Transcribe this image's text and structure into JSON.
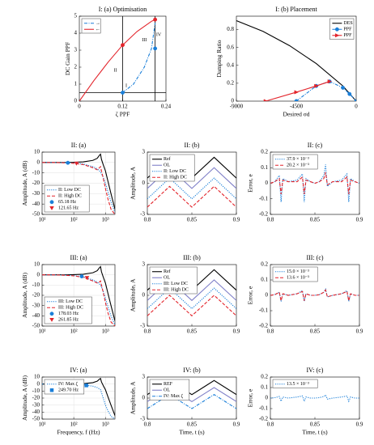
{
  "chart_data": [
    {
      "type": "line",
      "title": "I: (a) Optimisation",
      "xlabel": "ζ PPF",
      "ylabel": "DC Gain PPF",
      "xlim": [
        0,
        0.24
      ],
      "ylim": [
        0,
        5
      ],
      "xticks": [
        0,
        0.12,
        0.24
      ],
      "yticks": [
        0,
        1,
        2,
        3,
        4,
        5
      ],
      "legend": "upper left",
      "vlines": [
        0.12,
        0.21
      ],
      "hlines": [
        0.5
      ],
      "series": [
        {
          "name": "→",
          "color": "#1a7fd9",
          "dash": "dashdot",
          "x": [
            0.12,
            0.15,
            0.18,
            0.2,
            0.21
          ],
          "values": [
            0.5,
            1.0,
            2.0,
            3.1,
            4.6
          ]
        },
        {
          "name": "←",
          "color": "#e3242b",
          "dash": "solid",
          "x": [
            0,
            0.04,
            0.08,
            0.12,
            0.16,
            0.2,
            0.21
          ],
          "values": [
            0,
            1.2,
            2.3,
            3.3,
            4.1,
            4.7,
            4.8
          ]
        },
        {
          "color": "#1a7fd9",
          "marker": "o",
          "line": false,
          "x": [
            0.12,
            0.21
          ],
          "values": [
            0.5,
            3.1
          ]
        },
        {
          "color": "#e3242b",
          "marker": "o",
          "line": false,
          "x": [
            0.12,
            0.21
          ],
          "values": [
            3.3,
            4.8
          ]
        }
      ],
      "annotations": [
        {
          "text": "I",
          "x": 0.13,
          "y": 0.9
        },
        {
          "text": "II",
          "x": 0.1,
          "y": 1.8
        },
        {
          "text": "III",
          "x": 0.18,
          "y": 3.6
        },
        {
          "text": "IV",
          "x": 0.22,
          "y": 3.9
        }
      ]
    },
    {
      "type": "line",
      "title": "I: (b) Placement",
      "xlabel": "Desired σd",
      "ylabel": "Damping Ratio",
      "xlim": [
        -9000,
        0
      ],
      "ylim": [
        0,
        0.95
      ],
      "xticks": [
        -9000,
        -4500,
        0
      ],
      "yticks": [
        0,
        0.2,
        0.4,
        0.6,
        0.8
      ],
      "legend": "upper right",
      "series": [
        {
          "name": "DES",
          "color": "#000000",
          "dash": "solid",
          "x": [
            -9000,
            -7000,
            -5000,
            -3000,
            -1000,
            0
          ],
          "values": [
            0.9,
            0.78,
            0.62,
            0.42,
            0.17,
            0
          ]
        },
        {
          "name": "PPF",
          "color": "#1a7fd9",
          "dash": "dashdot",
          "marker": "o",
          "x": [
            -4500,
            -3000,
            -2000,
            -1000,
            -500,
            0
          ],
          "values": [
            0,
            0.17,
            0.22,
            0.15,
            0.08,
            0
          ]
        },
        {
          "name": "PPF",
          "color": "#e3242b",
          "dash": "solid",
          "marker": ">",
          "x": [
            -6800,
            -4500,
            -3000,
            -2000
          ],
          "values": [
            0,
            0.1,
            0.17,
            0.22
          ]
        }
      ]
    },
    {
      "type": "line",
      "title": "II: (a)",
      "ylabel": "Amplitude, A (dB)",
      "xscale": "log",
      "grid": true,
      "legend": "lower left",
      "xlim": [
        10,
        2000
      ],
      "ylim": [
        -50,
        10
      ],
      "xticks": [
        {
          "value": 10,
          "label": "10¹"
        },
        {
          "value": 100,
          "label": "10²"
        },
        {
          "value": 1000,
          "label": "10³"
        }
      ],
      "yticks": [
        -50,
        -40,
        -30,
        -20,
        -10,
        0,
        10
      ],
      "x": [
        10,
        20,
        50,
        100,
        200,
        400,
        550,
        650,
        700,
        750,
        850,
        1000,
        1200,
        1500,
        2000
      ],
      "series": [
        {
          "color": "#000000",
          "dash": "solid",
          "values": [
            0,
            0,
            0,
            0.2,
            0.6,
            2,
            4,
            7,
            8,
            3,
            -2,
            -8,
            -18,
            -30,
            -45
          ]
        },
        {
          "name": "II: Low DC",
          "color": "#1a7fd9",
          "dash": "dot",
          "values": [
            0,
            0,
            -0.2,
            -0.5,
            -1.5,
            -4,
            -6,
            -8,
            -9,
            -11,
            -14,
            -20,
            -28,
            -38,
            -48
          ]
        },
        {
          "name": "II: High DC",
          "color": "#e3242b",
          "dash": "dash",
          "values": [
            0,
            0,
            -0.3,
            -0.8,
            -2,
            -5,
            -7,
            -5,
            -4,
            -8,
            -15,
            -25,
            -35,
            -45,
            -50
          ]
        },
        {
          "name": "65.18 Hz",
          "color": "#1a7fd9",
          "marker": "o",
          "line": false,
          "x": [
            65.18
          ],
          "values": [
            -0.3
          ]
        },
        {
          "name": "121.65 Hz",
          "color": "#e3242b",
          "marker": "v",
          "line": false,
          "x": [
            121.65
          ],
          "values": [
            -1
          ]
        }
      ]
    },
    {
      "type": "line",
      "title": "II: (b)",
      "ylabel": "Amplitude, A",
      "legend": "upper left",
      "xlim": [
        0.8,
        0.9
      ],
      "ylim": [
        -3,
        3
      ],
      "xticks": [
        0.8,
        0.85,
        0.9
      ],
      "yticks": [
        -3,
        0,
        3
      ],
      "x": [
        0.8,
        0.825,
        0.85,
        0.875,
        0.9
      ],
      "series": [
        {
          "name": "Ref",
          "color": "#000000",
          "dash": "solid",
          "values": [
            0.5,
            2.5,
            0.5,
            2.5,
            0.5
          ]
        },
        {
          "name": "OL",
          "color": "#8080c8",
          "dash": "solid",
          "values": [
            -0.5,
            1.5,
            -0.5,
            1.5,
            -0.5
          ]
        },
        {
          "name": "II: Low DC",
          "color": "#1a7fd9",
          "dash": "dot",
          "values": [
            -1.5,
            0.5,
            -1.5,
            0.5,
            -1.5
          ]
        },
        {
          "name": "II: High DC",
          "color": "#e3242b",
          "dash": "dash",
          "values": [
            -2.3,
            -0.3,
            -2.3,
            -0.3,
            -2.3
          ]
        }
      ]
    },
    {
      "type": "line",
      "title": "II: (c)",
      "ylabel": "Error, e",
      "legend": "upper left",
      "xlim": [
        0.8,
        0.9
      ],
      "ylim": [
        -0.2,
        0.2
      ],
      "xticks": [
        0.8,
        0.85,
        0.9
      ],
      "yticks": [
        -0.2,
        -0.1,
        0,
        0.1,
        0.2
      ],
      "x": [
        0.8,
        0.805,
        0.81,
        0.812,
        0.814,
        0.82,
        0.83,
        0.836,
        0.838,
        0.84,
        0.845,
        0.85,
        0.855,
        0.86,
        0.862,
        0.864,
        0.87,
        0.88,
        0.886,
        0.888,
        0.89,
        0.895,
        0.9
      ],
      "series": [
        {
          "name": "37.9 × 10⁻³",
          "color": "#1a7fd9",
          "dash": "dot",
          "values": [
            0,
            0.01,
            0.05,
            -0.12,
            0.03,
            0.01,
            0.02,
            0.06,
            -0.12,
            0.03,
            0.01,
            0,
            0.01,
            0.05,
            0.12,
            -0.02,
            0.01,
            0.02,
            0.06,
            -0.12,
            0.03,
            0.01,
            0
          ]
        },
        {
          "name": "20.2 × 10⁻³",
          "color": "#e3242b",
          "dash": "dash",
          "values": [
            0,
            0.01,
            0.03,
            -0.07,
            0.02,
            0.01,
            0.01,
            0.04,
            -0.07,
            0.02,
            0.01,
            0,
            0.01,
            0.03,
            0.07,
            -0.01,
            0.01,
            0.01,
            0.04,
            -0.07,
            0.02,
            0.01,
            0
          ]
        }
      ]
    },
    {
      "type": "line",
      "title": "III: (a)",
      "ylabel": "Amplitude, A (dB)",
      "xscale": "log",
      "grid": true,
      "legend": "lower left",
      "xlim": [
        10,
        2000
      ],
      "ylim": [
        -50,
        10
      ],
      "xticks": [
        {
          "value": 10,
          "label": "10¹"
        },
        {
          "value": 100,
          "label": "10²"
        },
        {
          "value": 1000,
          "label": "10³"
        }
      ],
      "yticks": [
        -50,
        -40,
        -30,
        -20,
        -10,
        0,
        10
      ],
      "x": [
        10,
        20,
        50,
        100,
        200,
        400,
        550,
        650,
        700,
        750,
        850,
        1000,
        1200,
        1500,
        2000
      ],
      "series": [
        {
          "color": "#000000",
          "dash": "solid",
          "values": [
            0,
            0,
            0,
            0.2,
            0.6,
            2,
            4,
            7,
            8,
            3,
            -2,
            -8,
            -18,
            -30,
            -45
          ]
        },
        {
          "name": "III: Low DC",
          "color": "#1a7fd9",
          "dash": "dot",
          "values": [
            0,
            0,
            -0.3,
            -0.7,
            -2,
            -5,
            -7,
            -9,
            -10,
            -12,
            -16,
            -23,
            -31,
            -40,
            -49
          ]
        },
        {
          "name": "III: High DC",
          "color": "#e3242b",
          "dash": "dash",
          "values": [
            0,
            0,
            -0.4,
            -1,
            -2.5,
            -6,
            -8,
            -7,
            -6,
            -10,
            -17,
            -27,
            -37,
            -46,
            -50
          ]
        },
        {
          "name": "178.03 Hz",
          "color": "#1a7fd9",
          "marker": "o",
          "line": false,
          "x": [
            178.03
          ],
          "values": [
            -1.5
          ]
        },
        {
          "name": "261.85 Hz",
          "color": "#e3242b",
          "marker": "v",
          "line": false,
          "x": [
            261.85
          ],
          "values": [
            -3
          ]
        }
      ]
    },
    {
      "type": "line",
      "title": "III: (b)",
      "ylabel": "Amplitude, A",
      "legend": "upper left",
      "xlim": [
        0.8,
        0.9
      ],
      "ylim": [
        -3,
        3
      ],
      "xticks": [
        0.8,
        0.85,
        0.9
      ],
      "yticks": [
        -3,
        0,
        3
      ],
      "x": [
        0.8,
        0.825,
        0.85,
        0.875,
        0.9
      ],
      "series": [
        {
          "name": "Ref",
          "color": "#000000",
          "dash": "solid",
          "values": [
            0.5,
            2.5,
            0.5,
            2.5,
            0.5
          ]
        },
        {
          "name": "OL",
          "color": "#8080c8",
          "dash": "solid",
          "values": [
            -0.5,
            1.5,
            -0.5,
            1.5,
            -0.5
          ]
        },
        {
          "name": "III: Low DC",
          "color": "#1a7fd9",
          "dash": "dot",
          "values": [
            -1.3,
            0.7,
            -1.3,
            0.7,
            -1.3
          ]
        },
        {
          "name": "III: High DC",
          "color": "#e3242b",
          "dash": "dash",
          "values": [
            -2,
            0,
            -2,
            0,
            -2
          ]
        }
      ]
    },
    {
      "type": "line",
      "title": "III: (c)",
      "ylabel": "Error, e",
      "legend": "upper left",
      "xlim": [
        0.8,
        0.9
      ],
      "ylim": [
        -0.2,
        0.2
      ],
      "xticks": [
        0.8,
        0.85,
        0.9
      ],
      "yticks": [
        -0.2,
        -0.1,
        0,
        0.1,
        0.2
      ],
      "x": [
        0.8,
        0.805,
        0.81,
        0.812,
        0.814,
        0.82,
        0.83,
        0.836,
        0.838,
        0.84,
        0.845,
        0.85,
        0.855,
        0.86,
        0.862,
        0.864,
        0.87,
        0.88,
        0.886,
        0.888,
        0.89,
        0.895,
        0.9
      ],
      "series": [
        {
          "name": "15.0 × 10⁻³",
          "color": "#1a7fd9",
          "dash": "dot",
          "values": [
            0,
            0.005,
            0.02,
            -0.04,
            0.01,
            0,
            0.01,
            0.03,
            -0.04,
            0.01,
            0,
            0,
            0.005,
            0.02,
            0.04,
            -0.01,
            0,
            0.01,
            0.03,
            -0.04,
            0.01,
            0,
            0
          ]
        },
        {
          "name": "13.6 × 10⁻³",
          "color": "#e3242b",
          "dash": "dash",
          "values": [
            0,
            0.004,
            0.02,
            -0.035,
            0.01,
            0,
            0.01,
            0.025,
            -0.035,
            0.01,
            0,
            0,
            0.004,
            0.02,
            0.035,
            -0.01,
            0,
            0.01,
            0.025,
            -0.035,
            0.01,
            0,
            0
          ]
        }
      ]
    },
    {
      "type": "line",
      "title": "IV: (a)",
      "ylabel": "Amplitude, A (dB)",
      "xlabel": "Frequency, f (Hz)",
      "xscale": "log",
      "grid": true,
      "legend": "upper left",
      "xlim": [
        10,
        2000
      ],
      "ylim": [
        -50,
        10
      ],
      "xticks": [
        {
          "value": 10,
          "label": "10¹"
        },
        {
          "value": 100,
          "label": "10²"
        },
        {
          "value": 1000,
          "label": "10³"
        }
      ],
      "yticks": [
        -50,
        -40,
        -30,
        -20,
        -10,
        0,
        10
      ],
      "x": [
        10,
        20,
        50,
        100,
        200,
        400,
        550,
        650,
        700,
        750,
        850,
        1000,
        1200,
        1500,
        2000
      ],
      "series": [
        {
          "color": "#000000",
          "dash": "solid",
          "values": [
            0,
            0,
            0,
            0.2,
            0.6,
            2,
            4,
            7,
            8,
            3,
            -2,
            -8,
            -18,
            -30,
            -45
          ]
        },
        {
          "name": "IV: Max ζ",
          "color": "#1a7fd9",
          "dash": "dot",
          "values": [
            0,
            0,
            -0.2,
            -0.5,
            -1.2,
            -3,
            -5,
            -7,
            -8,
            -12,
            -20,
            -30,
            -38,
            -46,
            -50
          ]
        },
        {
          "name": "249.70 Hz",
          "color": "#1a7fd9",
          "marker": "s",
          "line": false,
          "x": [
            249.7
          ],
          "values": [
            -2
          ]
        }
      ]
    },
    {
      "type": "line",
      "title": "IV: (b)",
      "ylabel": "Amplitude, A",
      "xlabel": "Time, t (s)",
      "legend": "upper left",
      "xlim": [
        0.8,
        0.9
      ],
      "ylim": [
        -3,
        3
      ],
      "xticks": [
        0.8,
        0.85,
        0.9
      ],
      "yticks": [
        -3,
        0,
        3
      ],
      "x": [
        0.8,
        0.825,
        0.85,
        0.875,
        0.9
      ],
      "series": [
        {
          "name": "REF",
          "color": "#000000",
          "dash": "solid",
          "values": [
            0.5,
            2.5,
            0.5,
            2.5,
            0.5
          ]
        },
        {
          "name": "OL",
          "color": "#8080c8",
          "dash": "solid",
          "values": [
            -0.5,
            1.5,
            -0.5,
            1.5,
            -0.5
          ]
        },
        {
          "name": "IV: Max ζ",
          "color": "#1a7fd9",
          "dash": "dashdot",
          "values": [
            -1.5,
            0.5,
            -1.5,
            0.5,
            -1.5
          ]
        }
      ]
    },
    {
      "type": "line",
      "title": "IV: (c)",
      "ylabel": "Error, e",
      "xlabel": "Time, t (s)",
      "legend": "upper left",
      "xlim": [
        0.8,
        0.9
      ],
      "ylim": [
        -0.2,
        0.2
      ],
      "xticks": [
        0.8,
        0.85,
        0.9
      ],
      "yticks": [
        -0.2,
        -0.1,
        0,
        0.1,
        0.2
      ],
      "x": [
        0.8,
        0.805,
        0.81,
        0.812,
        0.814,
        0.82,
        0.83,
        0.836,
        0.838,
        0.84,
        0.845,
        0.85,
        0.855,
        0.86,
        0.862,
        0.864,
        0.87,
        0.88,
        0.886,
        0.888,
        0.89,
        0.895,
        0.9
      ],
      "series": [
        {
          "name": "13.5 × 10⁻³",
          "color": "#1a7fd9",
          "dash": "dot",
          "values": [
            0,
            0.004,
            0.015,
            -0.03,
            0.01,
            0,
            0.01,
            0.02,
            -0.03,
            0.01,
            0,
            0,
            0.004,
            0.015,
            0.03,
            -0.01,
            0,
            0.01,
            0.02,
            -0.03,
            0.01,
            0,
            0
          ]
        }
      ]
    }
  ]
}
